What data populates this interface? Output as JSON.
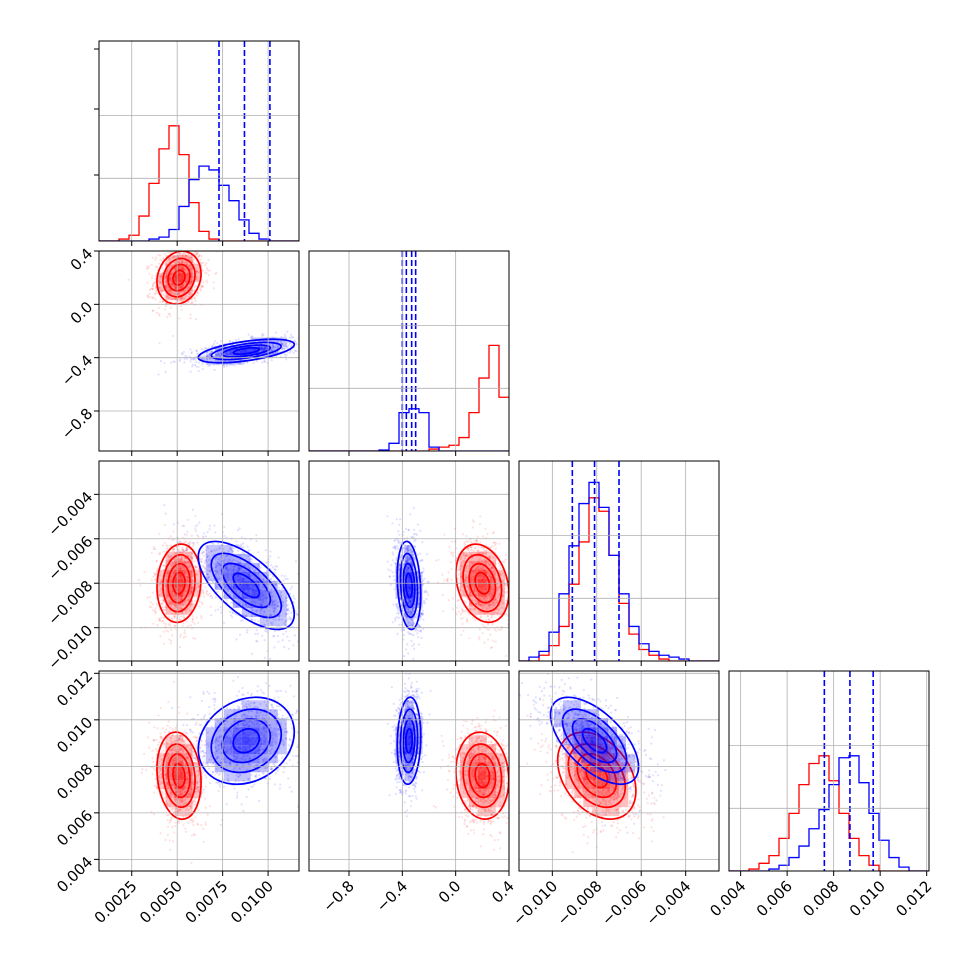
{
  "colors": {
    "series_a": "#ff0000",
    "series_b": "#0000ff",
    "grid": "#b0b0b0",
    "frame": "#000000"
  },
  "chart_data": {
    "type": "corner",
    "parameters": 4,
    "grid": true,
    "ranges": [
      [
        0.0007,
        0.0117
      ],
      [
        -1.1,
        0.4
      ],
      [
        -0.0115,
        -0.0025
      ],
      [
        0.0035,
        0.0121
      ]
    ],
    "tick_labels": [
      [
        "0.0025",
        "0.0050",
        "0.0075",
        "0.0100"
      ],
      [
        "−0.8",
        "−0.4",
        "0.0",
        "0.4"
      ],
      [
        "−0.010",
        "−0.008",
        "−0.006",
        "−0.004"
      ],
      [
        "0.004",
        "0.006",
        "0.008",
        "0.010",
        "0.012"
      ]
    ],
    "tick_values": [
      [
        0.0025,
        0.005,
        0.0075,
        0.01
      ],
      [
        -0.8,
        -0.4,
        0.0,
        0.4
      ],
      [
        -0.01,
        -0.008,
        -0.006,
        -0.004
      ],
      [
        0.004,
        0.006,
        0.008,
        0.01,
        0.012
      ]
    ],
    "series": [
      {
        "color": "#ff0000",
        "means": [
          0.0051,
          0.2,
          -0.008,
          0.0076
        ],
        "sds": [
          0.00055,
          0.09,
          0.0008,
          0.00085
        ],
        "marginals": [
          [
            0,
            0,
            0.01,
            0.03,
            0.13,
            0.3,
            0.48,
            0.6,
            0.45,
            0.2,
            0.05,
            0.01,
            0,
            0,
            0,
            0,
            0,
            0,
            0,
            0
          ],
          [
            0,
            0,
            0,
            0,
            0,
            0,
            0,
            0,
            0,
            0,
            0,
            0,
            0.01,
            0.02,
            0.03,
            0.07,
            0.2,
            0.38,
            0.55,
            0.28
          ],
          [
            0,
            0,
            0.03,
            0.08,
            0.18,
            0.4,
            0.62,
            0.85,
            0.78,
            0.55,
            0.3,
            0.14,
            0.06,
            0.03,
            0.01,
            0,
            0,
            0,
            0,
            0
          ],
          [
            0,
            0,
            0.01,
            0.04,
            0.08,
            0.17,
            0.3,
            0.45,
            0.56,
            0.6,
            0.47,
            0.3,
            0.17,
            0.08,
            0.03,
            0,
            0,
            0,
            0,
            0
          ]
        ]
      },
      {
        "color": "#0000ff",
        "means": [
          0.0088,
          -0.35,
          -0.0081,
          0.0091
        ],
        "sds": [
          0.0012,
          0.04,
          0.0009,
          0.00085
        ],
        "marginals": [
          [
            0,
            0,
            0,
            0,
            0,
            0.01,
            0.02,
            0.06,
            0.18,
            0.32,
            0.39,
            0.37,
            0.29,
            0.21,
            0.11,
            0.04,
            0.01,
            0,
            0,
            0
          ],
          [
            0,
            0,
            0,
            0,
            0,
            0,
            0,
            0.005,
            0.04,
            0.2,
            0.22,
            0.2,
            0.02,
            0,
            0,
            0,
            0,
            0,
            0,
            0
          ],
          [
            0,
            0.02,
            0.05,
            0.15,
            0.35,
            0.6,
            0.82,
            0.93,
            0.8,
            0.55,
            0.35,
            0.18,
            0.09,
            0.05,
            0.03,
            0.02,
            0.01,
            0,
            0,
            0
          ],
          [
            0,
            0,
            0,
            0,
            0.01,
            0.03,
            0.07,
            0.13,
            0.22,
            0.32,
            0.45,
            0.59,
            0.6,
            0.46,
            0.3,
            0.16,
            0.07,
            0.02,
            0,
            0
          ]
        ]
      }
    ],
    "quantile_lines": [
      [
        0.0073,
        0.0087,
        0.0101
      ],
      [
        -0.4,
        -0.37,
        -0.33,
        -0.3
      ],
      [
        -0.0091,
        -0.0081,
        -0.007
      ],
      [
        0.0076,
        0.0087,
        0.0097
      ]
    ],
    "correlations": {
      "series_a": [
        [
          0,
          0,
          0,
          0
        ],
        [
          0.15,
          0,
          0,
          0
        ],
        [
          0.1,
          -0.25,
          0,
          0
        ],
        [
          -0.15,
          -0.1,
          -0.35,
          0
        ]
      ],
      "series_b": [
        [
          0,
          0,
          0,
          0
        ],
        [
          0.55,
          0,
          0,
          0
        ],
        [
          -0.65,
          -0.2,
          0,
          0
        ],
        [
          0.2,
          0.1,
          -0.6,
          0
        ]
      ]
    },
    "contour_levels_sigma": [
      0.6,
      1.1,
      1.6,
      2.2
    ]
  }
}
